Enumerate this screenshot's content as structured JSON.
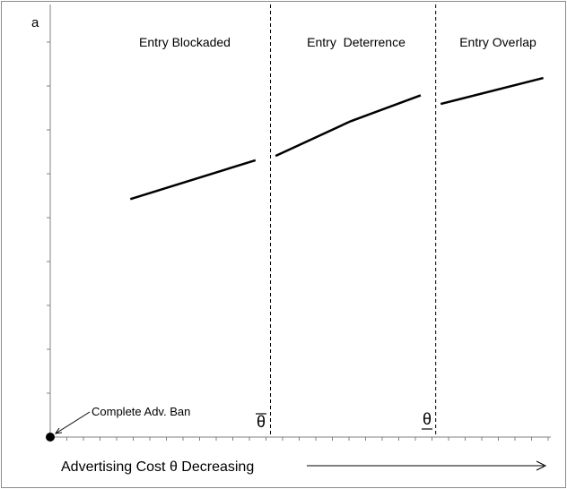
{
  "chart_data": {
    "type": "line",
    "y_axis_label": "a",
    "x_axis_label": "Advertising Cost θ Decreasing",
    "regions": [
      {
        "label": "Entry Blockaded"
      },
      {
        "label": "Entry  Deterrence"
      },
      {
        "label": "Entry Overlap"
      }
    ],
    "thresholds": [
      {
        "label": "θ",
        "accent": "overline",
        "x": 0.44
      },
      {
        "label": "θ",
        "accent": "underline",
        "x": 0.77
      }
    ],
    "series": [
      {
        "points": [
          [
            0.16,
            0.55
          ],
          [
            0.41,
            0.64
          ]
        ]
      },
      {
        "points": [
          [
            0.45,
            0.65
          ],
          [
            0.6,
            0.73
          ],
          [
            0.74,
            0.79
          ]
        ]
      },
      {
        "points": [
          [
            0.78,
            0.77
          ],
          [
            0.985,
            0.83
          ]
        ]
      }
    ],
    "annotation": {
      "text": "Complete Adv. Ban",
      "x": 0,
      "y": 0
    },
    "xlim": [
      0,
      1
    ],
    "ylim": [
      0,
      1
    ],
    "grid": false,
    "colors": {
      "line": "#000000",
      "axis": "#808080",
      "frame": "#808080"
    }
  }
}
